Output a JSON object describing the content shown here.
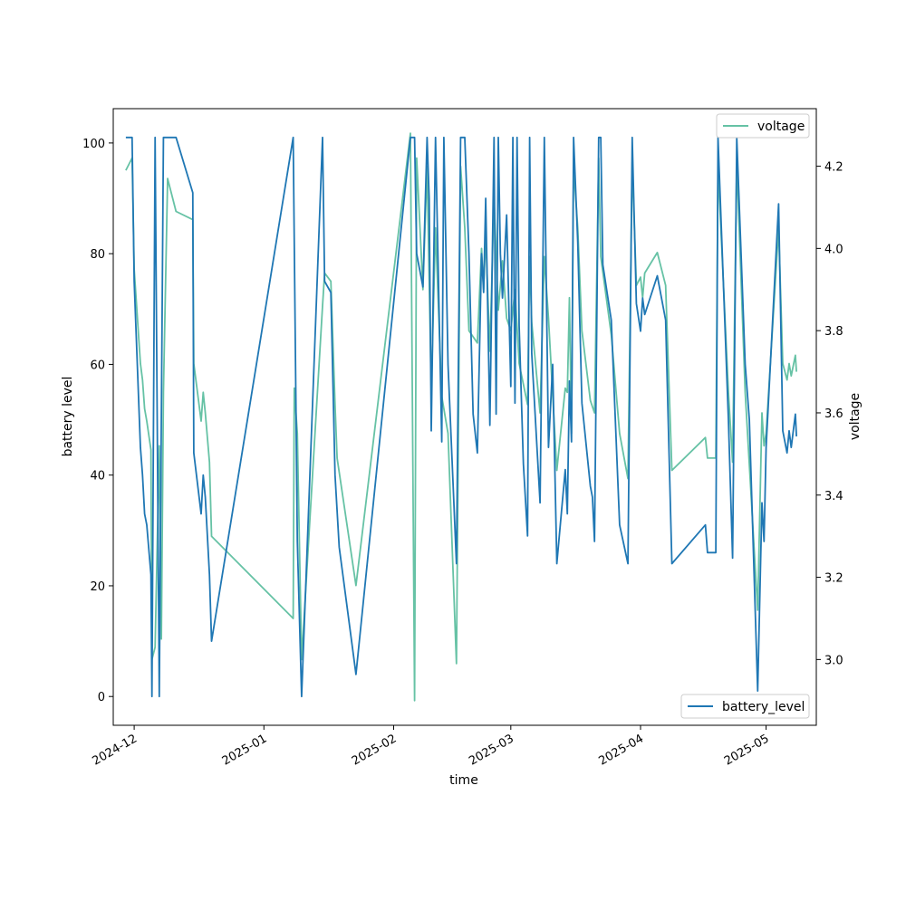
{
  "chart_data": {
    "type": "line",
    "xlabel": "time",
    "ylabel_left": "battery level",
    "ylabel_right": "voltage",
    "x_ticks": [
      "2024-12",
      "2025-01",
      "2025-02",
      "2025-03",
      "2025-04",
      "2025-05"
    ],
    "y_left_ticks": [
      0,
      20,
      40,
      60,
      80,
      100
    ],
    "y_right_ticks": [
      "3.0",
      "3.2",
      "3.4",
      "3.6",
      "3.8",
      "4.0",
      "4.2"
    ],
    "xlim": [
      "2024-11-26",
      "2025-05-13"
    ],
    "ylim_left": [
      -5.2,
      106.2
    ],
    "ylim_right": [
      2.84,
      4.34
    ],
    "grid": false,
    "series": [
      {
        "name": "battery_level",
        "axis": "left",
        "color": "#1f77b4",
        "legend_position": "lower right",
        "points": [
          [
            "2024-11-29",
            101
          ],
          [
            "2024-11-30",
            101
          ],
          [
            "2024-11-30 12:00",
            101
          ],
          [
            "2024-12-01",
            75
          ],
          [
            "2024-12-02 12:00",
            45
          ],
          [
            "2024-12-03",
            40
          ],
          [
            "2024-12-03 12:00",
            33
          ],
          [
            "2024-12-04",
            31
          ],
          [
            "2024-12-05",
            22
          ],
          [
            "2024-12-05 06:00",
            0
          ],
          [
            "2024-12-06",
            101
          ],
          [
            "2024-12-07",
            0
          ],
          [
            "2024-12-08",
            101
          ],
          [
            "2024-12-11",
            101
          ],
          [
            "2024-12-15",
            91
          ],
          [
            "2024-12-15 06:00",
            44
          ],
          [
            "2024-12-17",
            33
          ],
          [
            "2024-12-17 12:00",
            40
          ],
          [
            "2024-12-18",
            36
          ],
          [
            "2024-12-19",
            22
          ],
          [
            "2024-12-19 12:00",
            10
          ],
          [
            "2025-01-08",
            101
          ],
          [
            "2025-01-09",
            28
          ],
          [
            "2025-01-10",
            0
          ],
          [
            "2025-01-15",
            101
          ],
          [
            "2025-01-15 12:00",
            75
          ],
          [
            "2025-01-17",
            73
          ],
          [
            "2025-01-18",
            40
          ],
          [
            "2025-01-19",
            27
          ],
          [
            "2025-01-23",
            4
          ],
          [
            "2025-02-05",
            101
          ],
          [
            "2025-02-06",
            101
          ],
          [
            "2025-02-06 12:00",
            80
          ],
          [
            "2025-02-08",
            74
          ],
          [
            "2025-02-09",
            101
          ],
          [
            "2025-02-09 12:00",
            90
          ],
          [
            "2025-02-10",
            48
          ],
          [
            "2025-02-11",
            101
          ],
          [
            "2025-02-12 12:00",
            46
          ],
          [
            "2025-02-13",
            101
          ],
          [
            "2025-02-14",
            60
          ],
          [
            "2025-02-16",
            24
          ],
          [
            "2025-02-17",
            101
          ],
          [
            "2025-02-18",
            101
          ],
          [
            "2025-02-19",
            80
          ],
          [
            "2025-02-20",
            51
          ],
          [
            "2025-02-21",
            44
          ],
          [
            "2025-02-22",
            80
          ],
          [
            "2025-02-22 12:00",
            73
          ],
          [
            "2025-02-23",
            90
          ],
          [
            "2025-02-24",
            49
          ],
          [
            "2025-02-25",
            101
          ],
          [
            "2025-02-25 12:00",
            51
          ],
          [
            "2025-02-26",
            101
          ],
          [
            "2025-02-26 12:00",
            80
          ],
          [
            "2025-02-27",
            72
          ],
          [
            "2025-02-28",
            87
          ],
          [
            "2025-03-01",
            56
          ],
          [
            "2025-03-01 12:00",
            101
          ],
          [
            "2025-03-02",
            53
          ],
          [
            "2025-03-02 12:00",
            101
          ],
          [
            "2025-03-03",
            67
          ],
          [
            "2025-03-04",
            42
          ],
          [
            "2025-03-05",
            29
          ],
          [
            "2025-03-05 12:00",
            101
          ],
          [
            "2025-03-06",
            62
          ],
          [
            "2025-03-08",
            35
          ],
          [
            "2025-03-09",
            101
          ],
          [
            "2025-03-10",
            45
          ],
          [
            "2025-03-11",
            60
          ],
          [
            "2025-03-12",
            24
          ],
          [
            "2025-03-14",
            41
          ],
          [
            "2025-03-14 12:00",
            33
          ],
          [
            "2025-03-15",
            57
          ],
          [
            "2025-03-15 12:00",
            46
          ],
          [
            "2025-03-16",
            101
          ],
          [
            "2025-03-17",
            82
          ],
          [
            "2025-03-18",
            53
          ],
          [
            "2025-03-20",
            38
          ],
          [
            "2025-03-20 12:00",
            36
          ],
          [
            "2025-03-21",
            28
          ],
          [
            "2025-03-22",
            101
          ],
          [
            "2025-03-22 12:00",
            101
          ],
          [
            "2025-03-23",
            78
          ],
          [
            "2025-03-25",
            68
          ],
          [
            "2025-03-27",
            31
          ],
          [
            "2025-03-29",
            24
          ],
          [
            "2025-03-30",
            101
          ],
          [
            "2025-03-31",
            71
          ],
          [
            "2025-04-01",
            66
          ],
          [
            "2025-04-01 12:00",
            72
          ],
          [
            "2025-04-02",
            69
          ],
          [
            "2025-04-05",
            76
          ],
          [
            "2025-04-07",
            68
          ],
          [
            "2025-04-08 12:00",
            24
          ],
          [
            "2025-04-16 12:00",
            31
          ],
          [
            "2025-04-17",
            26
          ],
          [
            "2025-04-19",
            26
          ],
          [
            "2025-04-19 12:00",
            101
          ],
          [
            "2025-04-22",
            50
          ],
          [
            "2025-04-23",
            25
          ],
          [
            "2025-04-24",
            101
          ],
          [
            "2025-04-26",
            60
          ],
          [
            "2025-04-27",
            50
          ],
          [
            "2025-04-29",
            1
          ],
          [
            "2025-04-30",
            35
          ],
          [
            "2025-04-30 12:00",
            28
          ],
          [
            "2025-05-01",
            45
          ],
          [
            "2025-05-04",
            89
          ],
          [
            "2025-05-05",
            48
          ],
          [
            "2025-05-06",
            44
          ],
          [
            "2025-05-06 12:00",
            48
          ],
          [
            "2025-05-07",
            45
          ],
          [
            "2025-05-08",
            51
          ],
          [
            "2025-05-08 06:00",
            47
          ]
        ]
      },
      {
        "name": "voltage",
        "axis": "right",
        "color": "#66c2a5",
        "legend_position": "upper right",
        "points": [
          [
            "2024-11-29",
            4.19
          ],
          [
            "2024-11-30 12:00",
            4.22
          ],
          [
            "2024-12-01",
            3.95
          ],
          [
            "2024-12-02 12:00",
            3.72
          ],
          [
            "2024-12-03",
            3.68
          ],
          [
            "2024-12-03 12:00",
            3.61
          ],
          [
            "2024-12-04",
            3.58
          ],
          [
            "2024-12-05",
            3.51
          ],
          [
            "2024-12-05 06:00",
            3.0
          ],
          [
            "2024-12-06",
            3.03
          ],
          [
            "2024-12-07",
            3.52
          ],
          [
            "2024-12-07 12:00",
            3.05
          ],
          [
            "2024-12-08",
            3.65
          ],
          [
            "2024-12-09",
            4.17
          ],
          [
            "2024-12-11",
            4.09
          ],
          [
            "2024-12-15",
            4.07
          ],
          [
            "2024-12-15 06:00",
            3.72
          ],
          [
            "2024-12-17",
            3.58
          ],
          [
            "2024-12-17 12:00",
            3.65
          ],
          [
            "2024-12-18",
            3.6
          ],
          [
            "2024-12-19",
            3.48
          ],
          [
            "2024-12-19 12:00",
            3.3
          ],
          [
            "2025-01-08",
            3.1
          ],
          [
            "2025-01-08 06:00",
            3.66
          ],
          [
            "2025-01-09",
            3.55
          ],
          [
            "2025-01-10",
            3.0
          ],
          [
            "2025-01-15",
            3.86
          ],
          [
            "2025-01-15 12:00",
            3.94
          ],
          [
            "2025-01-17",
            3.92
          ],
          [
            "2025-01-18",
            3.62
          ],
          [
            "2025-01-18 12:00",
            3.49
          ],
          [
            "2025-01-23",
            3.18
          ],
          [
            "2025-02-05",
            4.28
          ],
          [
            "2025-02-06",
            2.9
          ],
          [
            "2025-02-06 12:00",
            4.22
          ],
          [
            "2025-02-08",
            3.9
          ],
          [
            "2025-02-09",
            4.2
          ],
          [
            "2025-02-10",
            3.65
          ],
          [
            "2025-02-11",
            4.05
          ],
          [
            "2025-02-12 12:00",
            3.64
          ],
          [
            "2025-02-14",
            3.55
          ],
          [
            "2025-02-16",
            2.99
          ],
          [
            "2025-02-17",
            4.2
          ],
          [
            "2025-02-18",
            4.05
          ],
          [
            "2025-02-19",
            3.8
          ],
          [
            "2025-02-21",
            3.77
          ],
          [
            "2025-02-22",
            4.0
          ],
          [
            "2025-02-22 12:00",
            3.9
          ],
          [
            "2025-02-23",
            4.03
          ],
          [
            "2025-02-24",
            3.75
          ],
          [
            "2025-02-25",
            4.12
          ],
          [
            "2025-02-26",
            3.85
          ],
          [
            "2025-02-27",
            3.97
          ],
          [
            "2025-02-28",
            3.83
          ],
          [
            "2025-03-01",
            3.8
          ],
          [
            "2025-03-02",
            3.9
          ],
          [
            "2025-03-03",
            3.72
          ],
          [
            "2025-03-05",
            3.62
          ],
          [
            "2025-03-05 12:00",
            3.98
          ],
          [
            "2025-03-06",
            3.82
          ],
          [
            "2025-03-08",
            3.6
          ],
          [
            "2025-03-09",
            3.98
          ],
          [
            "2025-03-10",
            3.83
          ],
          [
            "2025-03-12",
            3.46
          ],
          [
            "2025-03-14",
            3.66
          ],
          [
            "2025-03-14 12:00",
            3.65
          ],
          [
            "2025-03-15",
            3.88
          ],
          [
            "2025-03-15 12:00",
            3.55
          ],
          [
            "2025-03-16",
            4.2
          ],
          [
            "2025-03-17",
            4.05
          ],
          [
            "2025-03-18",
            3.8
          ],
          [
            "2025-03-20",
            3.63
          ],
          [
            "2025-03-21",
            3.6
          ],
          [
            "2025-03-22",
            4.22
          ],
          [
            "2025-03-22 12:00",
            3.98
          ],
          [
            "2025-03-25",
            3.79
          ],
          [
            "2025-03-27",
            3.55
          ],
          [
            "2025-03-29",
            3.44
          ],
          [
            "2025-03-30",
            4.21
          ],
          [
            "2025-03-31",
            3.91
          ],
          [
            "2025-04-01",
            3.93
          ],
          [
            "2025-04-01 12:00",
            3.88
          ],
          [
            "2025-04-02",
            3.94
          ],
          [
            "2025-04-05",
            3.99
          ],
          [
            "2025-04-07",
            3.91
          ],
          [
            "2025-04-08 12:00",
            3.46
          ],
          [
            "2025-04-16 12:00",
            3.54
          ],
          [
            "2025-04-17",
            3.49
          ],
          [
            "2025-04-19",
            3.49
          ],
          [
            "2025-04-19 12:00",
            4.2
          ],
          [
            "2025-04-22",
            3.65
          ],
          [
            "2025-04-23",
            3.48
          ],
          [
            "2025-04-24",
            4.21
          ],
          [
            "2025-04-26",
            3.65
          ],
          [
            "2025-04-29",
            3.12
          ],
          [
            "2025-04-30",
            3.6
          ],
          [
            "2025-04-30 12:00",
            3.52
          ],
          [
            "2025-05-01",
            3.55
          ],
          [
            "2025-05-04",
            4.05
          ],
          [
            "2025-05-05",
            3.72
          ],
          [
            "2025-05-06",
            3.68
          ],
          [
            "2025-05-06 12:00",
            3.72
          ],
          [
            "2025-05-07",
            3.69
          ],
          [
            "2025-05-08",
            3.74
          ],
          [
            "2025-05-08 06:00",
            3.7
          ]
        ]
      }
    ]
  }
}
